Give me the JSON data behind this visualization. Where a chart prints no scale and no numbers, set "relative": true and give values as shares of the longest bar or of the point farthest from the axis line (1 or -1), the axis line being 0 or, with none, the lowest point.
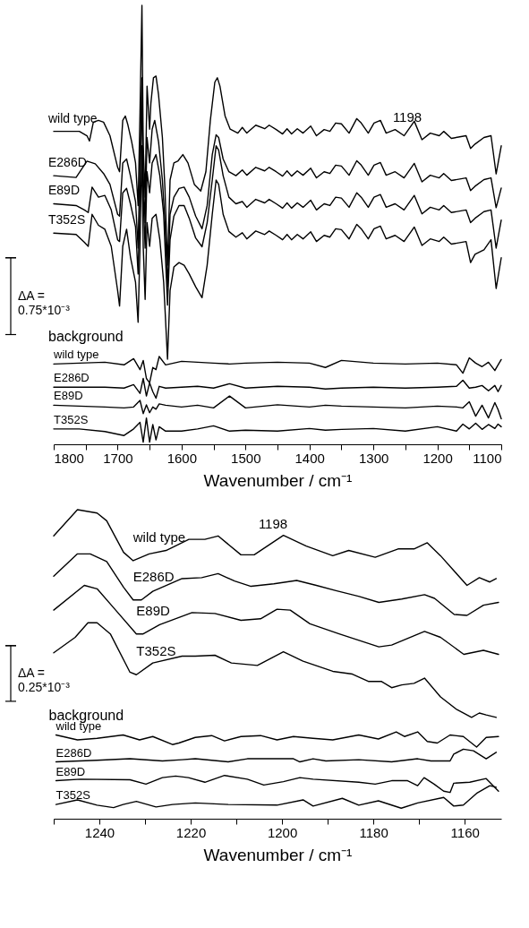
{
  "chart_data": [
    {
      "type": "line",
      "relative": true,
      "xlabel": "Wavenumber / cm⁻¹",
      "xlim": [
        1800,
        1100
      ],
      "xticks": [
        1800,
        {
          "value": 1750,
          "label": null
        },
        1700,
        {
          "value": 1650,
          "label": null
        },
        1600,
        {
          "value": 1550,
          "label": null
        },
        1500,
        {
          "value": 1450,
          "label": null
        },
        1400,
        {
          "value": 1350,
          "label": null
        },
        1300,
        {
          "value": 1250,
          "label": null
        },
        1200,
        {
          "value": 1150,
          "label": null
        },
        1100
      ],
      "annotations": [
        "ΔA =\n0.75*10⁻³",
        "background",
        "1198"
      ],
      "series": [
        {
          "name": "wild type",
          "color": "#000000",
          "x": [
            1800,
            1760,
            1748,
            1744,
            1738,
            1730,
            1722,
            1712,
            1700,
            1697,
            1692,
            1688,
            1684,
            1678,
            1672,
            1668,
            1665,
            1662,
            1660,
            1657,
            1654,
            1650,
            1648,
            1644,
            1640,
            1636,
            1630,
            1626,
            1622,
            1618,
            1612,
            1606,
            1598,
            1590,
            1580,
            1570,
            1562,
            1555,
            1548,
            1544,
            1540,
            1532,
            1524,
            1512,
            1505,
            1498,
            1484,
            1470,
            1463,
            1452,
            1442,
            1435,
            1428,
            1419,
            1410,
            1398,
            1389,
            1377,
            1368,
            1359,
            1350,
            1338,
            1326,
            1319,
            1308,
            1299,
            1289,
            1280,
            1266,
            1252,
            1236,
            1224,
            1211,
            1197,
            1190,
            1178,
            1155,
            1148,
            1141,
            1127,
            1116,
            1108,
            1100
          ],
          "values": [
            0.713,
            0.713,
            0.703,
            0.691,
            0.734,
            0.738,
            0.734,
            0.703,
            0.631,
            0.621,
            0.738,
            0.748,
            0.728,
            0.689,
            0.641,
            0.544,
            0.757,
            1.0,
            0.68,
            0.563,
            0.816,
            0.718,
            0.777,
            0.835,
            0.839,
            0.796,
            0.699,
            0.583,
            0.408,
            0.602,
            0.641,
            0.645,
            0.66,
            0.641,
            0.592,
            0.577,
            0.621,
            0.738,
            0.825,
            0.835,
            0.816,
            0.748,
            0.718,
            0.709,
            0.722,
            0.709,
            0.727,
            0.719,
            0.727,
            0.717,
            0.707,
            0.719,
            0.707,
            0.719,
            0.709,
            0.725,
            0.703,
            0.717,
            0.713,
            0.732,
            0.73,
            0.709,
            0.742,
            0.732,
            0.709,
            0.732,
            0.738,
            0.709,
            0.717,
            0.703,
            0.736,
            0.694,
            0.709,
            0.703,
            0.713,
            0.697,
            0.703,
            0.674,
            0.684,
            0.699,
            0.703,
            0.616,
            0.68
          ]
        },
        {
          "name": "E286D",
          "color": "#000000",
          "x": [
            1800,
            1765,
            1748,
            1735,
            1722,
            1712,
            1700,
            1697,
            1692,
            1686,
            1680,
            1672,
            1668,
            1665,
            1662,
            1660,
            1657,
            1654,
            1650,
            1646,
            1642,
            1636,
            1630,
            1626,
            1622,
            1618,
            1612,
            1604,
            1596,
            1588,
            1578,
            1568,
            1560,
            1552,
            1546,
            1542,
            1535,
            1526,
            1515,
            1505,
            1498,
            1484,
            1470,
            1463,
            1452,
            1442,
            1435,
            1428,
            1419,
            1410,
            1398,
            1389,
            1377,
            1368,
            1359,
            1350,
            1338,
            1326,
            1319,
            1308,
            1299,
            1289,
            1280,
            1266,
            1252,
            1236,
            1224,
            1211,
            1197,
            1190,
            1178,
            1155,
            1148,
            1141,
            1127,
            1116,
            1108,
            1100
          ],
          "values": [
            0.612,
            0.608,
            0.645,
            0.639,
            0.617,
            0.592,
            0.524,
            0.52,
            0.641,
            0.65,
            0.612,
            0.553,
            0.447,
            0.641,
            0.835,
            0.612,
            0.505,
            0.699,
            0.641,
            0.718,
            0.738,
            0.689,
            0.602,
            0.505,
            0.359,
            0.524,
            0.563,
            0.583,
            0.586,
            0.563,
            0.52,
            0.491,
            0.544,
            0.66,
            0.705,
            0.699,
            0.65,
            0.621,
            0.612,
            0.625,
            0.613,
            0.631,
            0.623,
            0.631,
            0.621,
            0.611,
            0.623,
            0.611,
            0.623,
            0.613,
            0.629,
            0.607,
            0.621,
            0.617,
            0.636,
            0.634,
            0.613,
            0.646,
            0.636,
            0.613,
            0.636,
            0.642,
            0.613,
            0.621,
            0.607,
            0.64,
            0.598,
            0.613,
            0.607,
            0.617,
            0.601,
            0.607,
            0.578,
            0.588,
            0.603,
            0.607,
            0.539,
            0.584
          ]
        },
        {
          "name": "E89D",
          "color": "#000000",
          "x": [
            1800,
            1765,
            1752,
            1746,
            1740,
            1730,
            1720,
            1710,
            1700,
            1697,
            1692,
            1686,
            1680,
            1672,
            1668,
            1665,
            1662,
            1660,
            1657,
            1654,
            1650,
            1646,
            1640,
            1634,
            1628,
            1622,
            1618,
            1612,
            1604,
            1596,
            1588,
            1578,
            1568,
            1560,
            1552,
            1546,
            1542,
            1535,
            1526,
            1515,
            1505,
            1498,
            1484,
            1470,
            1463,
            1452,
            1442,
            1435,
            1428,
            1419,
            1410,
            1398,
            1389,
            1377,
            1368,
            1359,
            1350,
            1338,
            1326,
            1319,
            1308,
            1299,
            1289,
            1280,
            1266,
            1252,
            1236,
            1224,
            1211,
            1197,
            1190,
            1178,
            1155,
            1148,
            1141,
            1127,
            1116,
            1108,
            1100
          ],
          "values": [
            0.548,
            0.544,
            0.534,
            0.528,
            0.586,
            0.563,
            0.567,
            0.534,
            0.466,
            0.462,
            0.573,
            0.583,
            0.548,
            0.495,
            0.388,
            0.583,
            0.816,
            0.563,
            0.447,
            0.621,
            0.573,
            0.641,
            0.66,
            0.612,
            0.524,
            0.317,
            0.466,
            0.52,
            0.544,
            0.544,
            0.515,
            0.47,
            0.45,
            0.505,
            0.602,
            0.68,
            0.67,
            0.612,
            0.563,
            0.548,
            0.553,
            0.54,
            0.558,
            0.55,
            0.558,
            0.548,
            0.538,
            0.55,
            0.538,
            0.55,
            0.54,
            0.556,
            0.534,
            0.548,
            0.544,
            0.563,
            0.561,
            0.54,
            0.573,
            0.563,
            0.54,
            0.563,
            0.569,
            0.54,
            0.548,
            0.534,
            0.567,
            0.525,
            0.54,
            0.534,
            0.544,
            0.528,
            0.534,
            0.505,
            0.515,
            0.53,
            0.534,
            0.447,
            0.511
          ]
        },
        {
          "name": "T352S",
          "color": "#000000",
          "x": [
            1800,
            1765,
            1752,
            1746,
            1740,
            1730,
            1720,
            1710,
            1700,
            1697,
            1692,
            1686,
            1680,
            1672,
            1668,
            1665,
            1662,
            1660,
            1657,
            1654,
            1650,
            1646,
            1640,
            1634,
            1628,
            1622,
            1618,
            1612,
            1604,
            1596,
            1588,
            1578,
            1568,
            1560,
            1552,
            1546,
            1542,
            1535,
            1526,
            1515,
            1505,
            1498,
            1484,
            1470,
            1463,
            1452,
            1442,
            1435,
            1428,
            1419,
            1410,
            1398,
            1389,
            1377,
            1368,
            1359,
            1350,
            1338,
            1326,
            1319,
            1308,
            1299,
            1289,
            1280,
            1266,
            1252,
            1236,
            1224,
            1211,
            1197,
            1190,
            1178,
            1155,
            1148,
            1141,
            1127,
            1116,
            1108,
            1100
          ],
          "values": [
            0.481,
            0.478,
            0.46,
            0.451,
            0.524,
            0.499,
            0.49,
            0.451,
            0.35,
            0.315,
            0.451,
            0.49,
            0.427,
            0.369,
            0.278,
            0.451,
            0.68,
            0.451,
            0.33,
            0.505,
            0.451,
            0.515,
            0.524,
            0.466,
            0.369,
            0.194,
            0.35,
            0.404,
            0.414,
            0.408,
            0.388,
            0.359,
            0.334,
            0.408,
            0.524,
            0.602,
            0.592,
            0.524,
            0.485,
            0.472,
            0.482,
            0.468,
            0.486,
            0.478,
            0.486,
            0.476,
            0.466,
            0.478,
            0.466,
            0.478,
            0.468,
            0.484,
            0.462,
            0.476,
            0.472,
            0.491,
            0.489,
            0.468,
            0.501,
            0.491,
            0.468,
            0.491,
            0.497,
            0.468,
            0.476,
            0.462,
            0.495,
            0.453,
            0.468,
            0.462,
            0.472,
            0.456,
            0.462,
            0.414,
            0.433,
            0.443,
            0.466,
            0.355,
            0.425
          ]
        },
        {
          "name": "wild type",
          "color": "#000000",
          "x": [
            1800,
            1760,
            1720,
            1690,
            1675,
            1665,
            1660,
            1655,
            1650,
            1645,
            1640,
            1635,
            1625,
            1600,
            1575,
            1550,
            1525,
            1500,
            1450,
            1400,
            1375,
            1350,
            1300,
            1250,
            1200,
            1170,
            1160,
            1150,
            1140,
            1130,
            1120,
            1110,
            1105,
            1100
          ],
          "values": [
            0.183,
            0.185,
            0.187,
            0.181,
            0.195,
            0.17,
            0.191,
            0.15,
            0.14,
            0.175,
            0.17,
            0.2,
            0.181,
            0.189,
            0.187,
            0.185,
            0.183,
            0.185,
            0.187,
            0.185,
            0.175,
            0.191,
            0.185,
            0.183,
            0.185,
            0.181,
            0.162,
            0.197,
            0.185,
            0.177,
            0.187,
            0.168,
            0.181,
            0.193
          ]
        },
        {
          "name": "E286D",
          "color": "#000000",
          "x": [
            1800,
            1760,
            1720,
            1690,
            1675,
            1665,
            1660,
            1655,
            1650,
            1645,
            1640,
            1635,
            1625,
            1600,
            1575,
            1550,
            1525,
            1500,
            1450,
            1400,
            1375,
            1350,
            1300,
            1250,
            1200,
            1170,
            1160,
            1150,
            1140,
            1130,
            1120,
            1110,
            1105,
            1100
          ],
          "values": [
            0.13,
            0.13,
            0.13,
            0.128,
            0.136,
            0.116,
            0.15,
            0.11,
            0.14,
            0.12,
            0.105,
            0.132,
            0.128,
            0.13,
            0.132,
            0.128,
            0.138,
            0.128,
            0.132,
            0.13,
            0.126,
            0.128,
            0.13,
            0.128,
            0.13,
            0.132,
            0.146,
            0.128,
            0.13,
            0.134,
            0.122,
            0.134,
            0.12,
            0.134
          ]
        },
        {
          "name": "E89D",
          "color": "#000000",
          "x": [
            1800,
            1760,
            1720,
            1690,
            1675,
            1665,
            1660,
            1655,
            1650,
            1645,
            1640,
            1635,
            1625,
            1600,
            1575,
            1550,
            1525,
            1500,
            1450,
            1400,
            1375,
            1350,
            1300,
            1250,
            1200,
            1170,
            1160,
            1150,
            1140,
            1130,
            1120,
            1110,
            1105,
            1100
          ],
          "values": [
            0.089,
            0.087,
            0.085,
            0.083,
            0.085,
            0.1,
            0.07,
            0.09,
            0.072,
            0.085,
            0.08,
            0.092,
            0.089,
            0.085,
            0.089,
            0.083,
            0.11,
            0.083,
            0.09,
            0.085,
            0.089,
            0.087,
            0.085,
            0.083,
            0.087,
            0.085,
            0.083,
            0.097,
            0.064,
            0.089,
            0.06,
            0.095,
            0.079,
            0.058
          ]
        },
        {
          "name": "T352S",
          "color": "#000000",
          "x": [
            1800,
            1760,
            1720,
            1690,
            1675,
            1665,
            1660,
            1655,
            1650,
            1645,
            1640,
            1635,
            1625,
            1600,
            1575,
            1550,
            1525,
            1500,
            1450,
            1400,
            1375,
            1350,
            1300,
            1250,
            1200,
            1170,
            1160,
            1150,
            1140,
            1130,
            1120,
            1110,
            1105,
            1100
          ],
          "values": [
            0.035,
            0.035,
            0.029,
            0.02,
            0.035,
            0.05,
            0.005,
            0.06,
            0.005,
            0.045,
            0.01,
            0.04,
            0.03,
            0.03,
            0.035,
            0.042,
            0.03,
            0.032,
            0.03,
            0.036,
            0.032,
            0.034,
            0.036,
            0.03,
            0.04,
            0.03,
            0.046,
            0.035,
            0.048,
            0.034,
            0.045,
            0.036,
            0.046,
            0.04
          ]
        }
      ]
    },
    {
      "type": "line",
      "relative": true,
      "xlabel": "Wavenumber / cm⁻¹",
      "xlim": [
        1250,
        1152
      ],
      "xticks": [
        {
          "value": 1250,
          "label": null
        },
        1240,
        {
          "value": 1230,
          "label": null
        },
        1220,
        {
          "value": 1210,
          "label": null
        },
        1200,
        {
          "value": 1190,
          "label": null
        },
        1180,
        {
          "value": 1170,
          "label": null
        },
        1160
      ],
      "annotations": [
        "ΔA =\n0.25*10⁻³",
        "background",
        "1198"
      ],
      "series": [
        {
          "name": "wild type",
          "color": "#000000",
          "x": [
            1250,
            1244.8,
            1240.5,
            1238.4,
            1234.7,
            1232.6,
            1229.1,
            1225.4,
            1220.4,
            1216.9,
            1214,
            1209,
            1206.1,
            1199.7,
            1194.7,
            1188.9,
            1185.4,
            1179.6,
            1174.6,
            1171.1,
            1168.2,
            1165.3,
            1159.5,
            1156.8,
            1154.5,
            1153.1
          ],
          "values": [
            0.915,
            1.0,
            0.989,
            0.964,
            0.862,
            0.835,
            0.857,
            0.868,
            0.904,
            0.904,
            0.915,
            0.854,
            0.854,
            0.917,
            0.882,
            0.851,
            0.868,
            0.846,
            0.873,
            0.873,
            0.893,
            0.851,
            0.755,
            0.78,
            0.766,
            0.777
          ]
        },
        {
          "name": "E286D",
          "color": "#000000",
          "x": [
            1250,
            1244.8,
            1242,
            1238.4,
            1234.7,
            1232.6,
            1230.8,
            1228.3,
            1221.9,
            1217.6,
            1214,
            1210.4,
            1206.8,
            1201.8,
            1196.8,
            1192.5,
            1188.2,
            1183.1,
            1178.8,
            1173.8,
            1168.8,
            1166.6,
            1162.3,
            1159.5,
            1155.9,
            1152.6
          ],
          "values": [
            0.785,
            0.857,
            0.857,
            0.832,
            0.749,
            0.708,
            0.708,
            0.736,
            0.777,
            0.78,
            0.793,
            0.769,
            0.752,
            0.76,
            0.771,
            0.755,
            0.738,
            0.719,
            0.7,
            0.711,
            0.725,
            0.713,
            0.661,
            0.658,
            0.691,
            0.7
          ]
        },
        {
          "name": "E89D",
          "color": "#000000",
          "x": [
            1250,
            1243.3,
            1240.5,
            1236.9,
            1231.9,
            1230.4,
            1226.8,
            1219.7,
            1214.7,
            1209,
            1204.7,
            1201.1,
            1198.2,
            1193.9,
            1187.5,
            1178.8,
            1176,
            1168.8,
            1165.3,
            1160.2,
            1155.9,
            1152.6
          ],
          "values": [
            0.675,
            0.755,
            0.744,
            0.683,
            0.598,
            0.598,
            0.628,
            0.667,
            0.664,
            0.642,
            0.647,
            0.678,
            0.675,
            0.631,
            0.598,
            0.556,
            0.562,
            0.606,
            0.587,
            0.532,
            0.545,
            0.532
          ]
        },
        {
          "name": "T352S",
          "color": "#000000",
          "x": [
            1250,
            1245.3,
            1242.5,
            1240.5,
            1237.6,
            1233.3,
            1231.9,
            1228.3,
            1221.9,
            1219,
            1214.7,
            1211.1,
            1205.4,
            1199.7,
            1195.4,
            1188.9,
            1184.6,
            1181,
            1178.2,
            1176,
            1173.8,
            1171.1,
            1168.8,
            1165.3,
            1161.7,
            1158.5,
            1156.8,
            1155.3,
            1153.1
          ],
          "values": [
            0.537,
            0.587,
            0.634,
            0.634,
            0.598,
            0.474,
            0.466,
            0.504,
            0.526,
            0.526,
            0.529,
            0.504,
            0.496,
            0.54,
            0.51,
            0.477,
            0.468,
            0.444,
            0.444,
            0.424,
            0.433,
            0.438,
            0.455,
            0.394,
            0.353,
            0.328,
            0.342,
            0.336,
            0.328
          ]
        },
        {
          "name": "wild type",
          "color": "#000000",
          "x": [
            1249.5,
            1244.8,
            1240.5,
            1234.8,
            1231.2,
            1228.3,
            1224.0,
            1222.6,
            1219.0,
            1215.4,
            1212.6,
            1209.0,
            1204.7,
            1201.1,
            1197.5,
            1193.2,
            1188.9,
            1183.2,
            1178.9,
            1175.0,
            1173.2,
            1170.3,
            1168.2,
            1166.0,
            1163.2,
            1160.3,
            1157.4,
            1155.3,
            1152.6
          ],
          "values": [
            0.271,
            0.255,
            0.26,
            0.271,
            0.255,
            0.266,
            0.24,
            0.245,
            0.263,
            0.269,
            0.252,
            0.266,
            0.269,
            0.255,
            0.266,
            0.26,
            0.255,
            0.271,
            0.258,
            0.281,
            0.266,
            0.281,
            0.25,
            0.245,
            0.271,
            0.266,
            0.232,
            0.263,
            0.266
          ]
        },
        {
          "name": "E286D",
          "color": "#000000",
          "x": [
            1249.5,
            1240.5,
            1233.3,
            1226.2,
            1221.9,
            1219.0,
            1211.8,
            1207.6,
            1197.5,
            1196.1,
            1193.2,
            1190.4,
            1183.2,
            1176.0,
            1170.3,
            1167.4,
            1163.2,
            1162.4,
            1160.3,
            1158.1,
            1155.3,
            1153.1
          ],
          "values": [
            0.184,
            0.189,
            0.194,
            0.187,
            0.191,
            0.194,
            0.184,
            0.194,
            0.194,
            0.184,
            0.194,
            0.187,
            0.191,
            0.184,
            0.194,
            0.187,
            0.187,
            0.209,
            0.225,
            0.22,
            0.194,
            0.215
          ]
        },
        {
          "name": "E89D",
          "color": "#000000",
          "x": [
            1249.5,
            1244.1,
            1233.3,
            1229.8,
            1226.2,
            1223.3,
            1220.5,
            1216.9,
            1212.6,
            1207.6,
            1204.0,
            1199.7,
            1196.1,
            1193.2,
            1183.2,
            1179.6,
            1176.0,
            1172.5,
            1170.3,
            1168.9,
            1166.7,
            1164.6,
            1163.2,
            1162.4,
            1158.9,
            1155.3,
            1152.6
          ],
          "values": [
            0.123,
            0.128,
            0.126,
            0.112,
            0.133,
            0.138,
            0.133,
            0.118,
            0.14,
            0.128,
            0.109,
            0.12,
            0.133,
            0.128,
            0.118,
            0.112,
            0.123,
            0.123,
            0.107,
            0.133,
            0.112,
            0.089,
            0.085,
            0.115,
            0.118,
            0.13,
            0.089
          ]
        },
        {
          "name": "T352S",
          "color": "#000000",
          "x": [
            1249.5,
            1244.8,
            1240.5,
            1236.9,
            1234.8,
            1231.9,
            1227.6,
            1224.0,
            1219.0,
            1211.8,
            1201.1,
            1195.4,
            1193.2,
            1186.8,
            1183.2,
            1178.9,
            1173.9,
            1170.3,
            1164.6,
            1162.4,
            1160.3,
            1157.4,
            1154.5,
            1153.1
          ],
          "values": [
            0.046,
            0.061,
            0.044,
            0.036,
            0.046,
            0.056,
            0.038,
            0.046,
            0.051,
            0.046,
            0.044,
            0.061,
            0.041,
            0.066,
            0.044,
            0.058,
            0.034,
            0.051,
            0.069,
            0.041,
            0.044,
            0.082,
            0.107,
            0.102
          ]
        }
      ]
    }
  ]
}
